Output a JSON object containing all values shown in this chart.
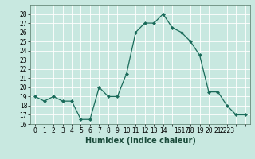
{
  "x": [
    0,
    1,
    2,
    3,
    4,
    5,
    6,
    7,
    8,
    9,
    10,
    11,
    12,
    13,
    14,
    15,
    16,
    17,
    18,
    19,
    20,
    21,
    22,
    23
  ],
  "y": [
    19,
    18.5,
    19,
    18.5,
    18.5,
    16.5,
    16.5,
    20,
    19,
    19,
    21.5,
    26,
    27,
    27,
    28,
    26.5,
    26,
    25,
    23.5,
    19.5,
    19.5,
    18,
    17,
    17
  ],
  "xlabel": "Humidex (Indice chaleur)",
  "xlim": [
    -0.5,
    23.5
  ],
  "ylim": [
    16,
    29
  ],
  "yticks": [
    16,
    17,
    18,
    19,
    20,
    21,
    22,
    23,
    24,
    25,
    26,
    27,
    28
  ],
  "xtick_positions": [
    0,
    1,
    2,
    3,
    4,
    5,
    6,
    7,
    8,
    9,
    10,
    11,
    12,
    13,
    14,
    15,
    16,
    17,
    18,
    19,
    20,
    21,
    22,
    23
  ],
  "xtick_labels": [
    "0",
    "1",
    "2",
    "3",
    "4",
    "5",
    "6",
    "7",
    "8",
    "9",
    "10",
    "11",
    "12",
    "13",
    "14",
    "",
    "1617",
    "18",
    "19",
    "20",
    "21",
    "2223",
    "",
    ""
  ],
  "line_color": "#1a6b5a",
  "marker": "D",
  "marker_size": 2.0,
  "bg_color": "#c8e8e0",
  "grid_color": "#ffffff",
  "xlabel_fontsize": 7.0,
  "tick_fontsize": 5.5
}
